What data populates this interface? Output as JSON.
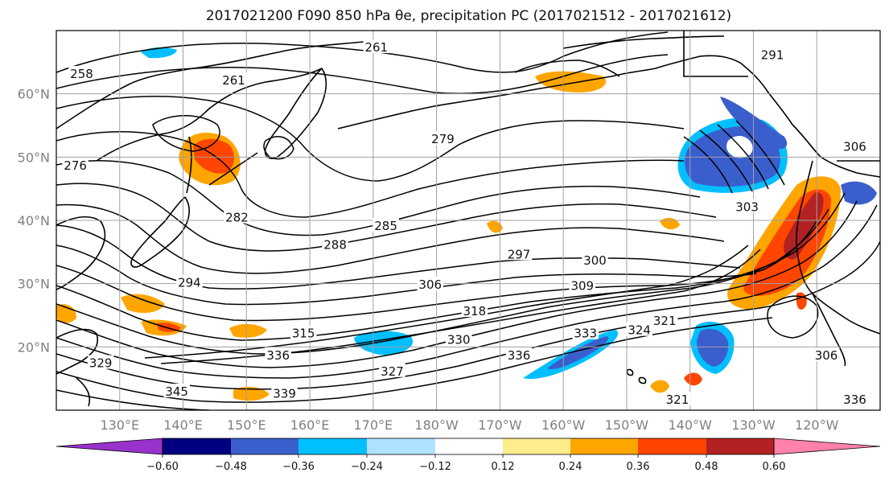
{
  "title": "2017021200 F090 850 hPa θe, precipitation PC (2017021512 - 2017021612)",
  "map": {
    "lat_labels": [
      "60°N",
      "50°N",
      "40°N",
      "30°N",
      "20°N"
    ],
    "lon_labels": [
      "130°E",
      "140°E",
      "150°E",
      "160°E",
      "170°E",
      "180°W",
      "170°W",
      "160°W",
      "150°W",
      "140°W",
      "130°W",
      "120°W"
    ],
    "extent": {
      "lon_min": 120,
      "lon_max": 250,
      "lat_min": 10,
      "lat_max": 70
    },
    "theta_e_contour_labels": [
      {
        "text": "261",
        "lon": 170.5,
        "lat": 67.2
      },
      {
        "text": "261",
        "lon": 148,
        "lat": 62
      },
      {
        "text": "258",
        "lon": 124,
        "lat": 63
      },
      {
        "text": "276",
        "lon": 123,
        "lat": 48.5
      },
      {
        "text": "279",
        "lon": 181,
        "lat": 52.7
      },
      {
        "text": "282",
        "lon": 148.5,
        "lat": 40.3
      },
      {
        "text": "285",
        "lon": 172,
        "lat": 39
      },
      {
        "text": "288",
        "lon": 164,
        "lat": 36
      },
      {
        "text": "294",
        "lon": 141,
        "lat": 30
      },
      {
        "text": "297",
        "lon": 193,
        "lat": 34.5
      },
      {
        "text": "300",
        "lon": 205,
        "lat": 33.5
      },
      {
        "text": "306",
        "lon": 179,
        "lat": 29.7
      },
      {
        "text": "309",
        "lon": 203,
        "lat": 29.5
      },
      {
        "text": "318",
        "lon": 186,
        "lat": 25.5
      },
      {
        "text": "315",
        "lon": 159,
        "lat": 22
      },
      {
        "text": "330",
        "lon": 183.5,
        "lat": 21
      },
      {
        "text": "336",
        "lon": 155,
        "lat": 18.5
      },
      {
        "text": "336",
        "lon": 193,
        "lat": 18.5
      },
      {
        "text": "327",
        "lon": 173,
        "lat": 16
      },
      {
        "text": "329",
        "lon": 127,
        "lat": 17.3
      },
      {
        "text": "345",
        "lon": 139,
        "lat": 12.8
      },
      {
        "text": "339",
        "lon": 156,
        "lat": 12.5
      },
      {
        "text": "333",
        "lon": 203.5,
        "lat": 22
      },
      {
        "text": "324",
        "lon": 212,
        "lat": 22.5
      },
      {
        "text": "321",
        "lon": 216,
        "lat": 24
      },
      {
        "text": "306",
        "lon": 241.5,
        "lat": 18.5
      },
      {
        "text": "303",
        "lon": 229,
        "lat": 42
      },
      {
        "text": "306",
        "lon": 246,
        "lat": 51.5
      },
      {
        "text": "291",
        "lon": 233,
        "lat": 66
      },
      {
        "text": "321",
        "lon": 218,
        "lat": 11.5
      },
      {
        "text": "336",
        "lon": 246,
        "lat": 11.5
      }
    ]
  },
  "colorbar": {
    "tick_labels": [
      "−0.60",
      "−0.48",
      "−0.36",
      "−0.24",
      "−0.12",
      "0.12",
      "0.24",
      "0.36",
      "0.48",
      "0.60"
    ],
    "segments": [
      "#9932cc",
      "#000080",
      "#3a5fcd",
      "#00bfff",
      "#b0e2ff",
      "#ffffff",
      "#ffec8b",
      "#ffa500",
      "#ff4500",
      "#b22222",
      "#ff82ab"
    ]
  },
  "colors": {
    "accent": "#000000",
    "grid": "#a0a0a0",
    "tick_label": "#808080"
  }
}
